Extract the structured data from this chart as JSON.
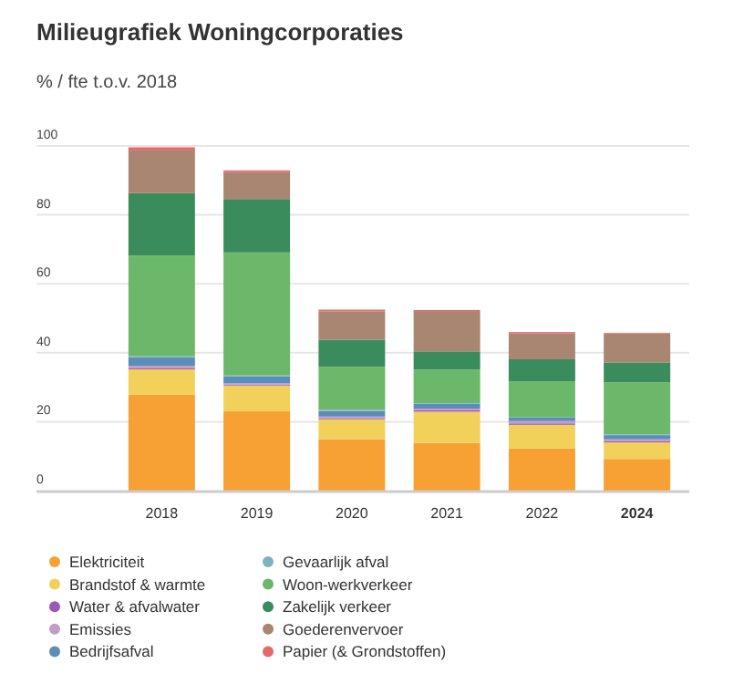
{
  "chart_data": {
    "type": "bar",
    "stacked": true,
    "title": "Milieugrafiek Woningcorporaties",
    "ylabel": "% / fte t.o.v. 2018",
    "categories": [
      "2018",
      "2019",
      "2020",
      "2021",
      "2022",
      "2024"
    ],
    "series": [
      {
        "name": "Elektriciteit",
        "color": "#f7a033",
        "values": [
          27.8,
          23.0,
          14.9,
          13.8,
          12.2,
          9.2
        ]
      },
      {
        "name": "Brandstof & warmte",
        "color": "#f2d15b",
        "values": [
          7.4,
          7.5,
          5.8,
          9.1,
          6.9,
          4.8
        ]
      },
      {
        "name": "Water & afvalwater",
        "color": "#9b59b6",
        "values": [
          0.4,
          0.3,
          0.3,
          0.4,
          0.4,
          0.4
        ]
      },
      {
        "name": "Emissies",
        "color": "#c39bc6",
        "values": [
          0.6,
          0.3,
          0.5,
          0.5,
          0.7,
          0.5
        ]
      },
      {
        "name": "Bedrijfsafval",
        "color": "#5b8db8",
        "values": [
          2.4,
          2.1,
          1.6,
          1.4,
          1.1,
          1.2
        ]
      },
      {
        "name": "Gevaarlijk afval",
        "color": "#7fb3c2",
        "values": [
          0.4,
          0.2,
          0.3,
          0.2,
          null,
          0.2
        ]
      },
      {
        "name": "Woon-werkverkeer",
        "color": "#6bb86b",
        "values": [
          29.2,
          35.7,
          12.5,
          9.7,
          10.4,
          15.1
        ]
      },
      {
        "name": "Zakelijk verkeer",
        "color": "#3a8c5c",
        "values": [
          18.1,
          15.5,
          7.9,
          5.3,
          6.4,
          5.8
        ]
      },
      {
        "name": "Goederenvervoer",
        "color": "#a98671",
        "values": [
          12.4,
          7.8,
          8.2,
          11.7,
          7.5,
          8.4
        ]
      },
      {
        "name": "Papier (& Grondstoffen)",
        "color": "#e8676b",
        "values": [
          0.9,
          0.5,
          0.5,
          0.3,
          0.4,
          0.2
        ]
      }
    ],
    "ylim": [
      0,
      100
    ],
    "yticks": [
      0,
      20,
      40,
      60,
      80,
      100
    ],
    "grid": "y",
    "legend": "bottom"
  }
}
